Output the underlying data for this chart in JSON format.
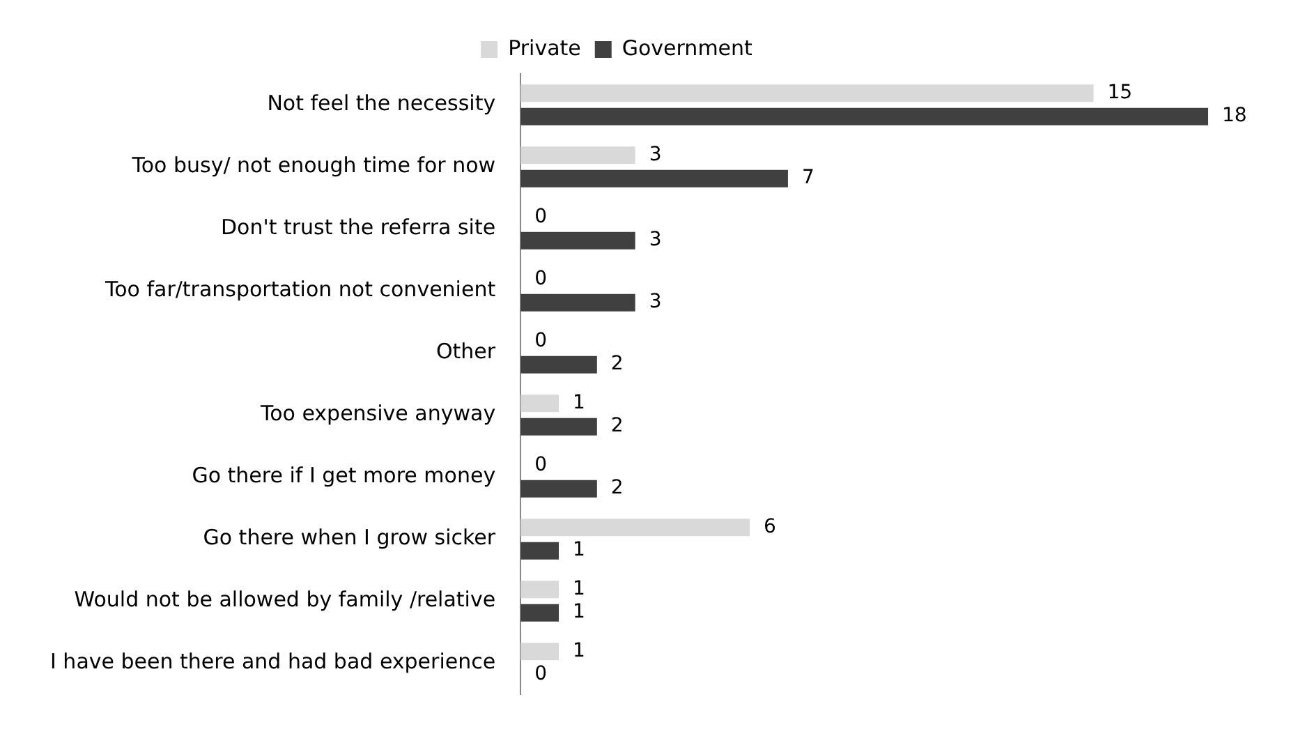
{
  "chart_data": {
    "type": "bar",
    "orientation": "horizontal",
    "categories": [
      "Not feel the necessity",
      "Too busy/ not enough time for now",
      "Don't trust the referra site",
      "Too far/transportation not convenient",
      "Other",
      "Too expensive anyway",
      "Go there if I get more money",
      "Go there when I grow sicker",
      "Would not be allowed by family /relative",
      "I have been there and had bad experience"
    ],
    "series": [
      {
        "name": "Private",
        "color": "#d9d9d9",
        "values": [
          15,
          3,
          0,
          0,
          0,
          1,
          0,
          6,
          1,
          1
        ]
      },
      {
        "name": "Government",
        "color": "#404040",
        "values": [
          18,
          7,
          3,
          3,
          2,
          2,
          2,
          1,
          1,
          0
        ]
      }
    ],
    "data_labels": true,
    "legend": "top",
    "grid": false
  }
}
